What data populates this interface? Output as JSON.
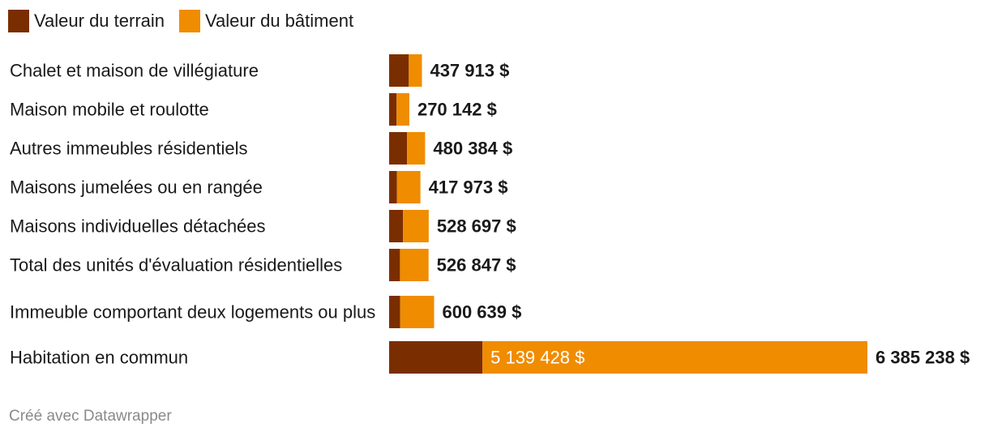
{
  "legend": {
    "items": [
      {
        "label": "Valeur du terrain",
        "color": "#7a2e00"
      },
      {
        "label": "Valeur du bâtiment",
        "color": "#f08c00"
      }
    ]
  },
  "footer": {
    "credit": "Créé avec Datawrapper"
  },
  "colors": {
    "land": "#7a2e00",
    "building": "#f08c00",
    "text": "#1a1a1a",
    "inside_label": "#ffffff"
  },
  "chart_data": {
    "type": "bar",
    "orientation": "horizontal",
    "stacked": true,
    "unit": "$",
    "categories": [
      "Chalet et maison de villégiature",
      "Maison mobile et roulotte",
      "Autres immeubles résidentiels",
      "Maisons jumelées ou en rangée",
      "Maisons individuelles détachées",
      "Total des unités d'évaluation résidentielles",
      "Immeuble comportant deux logements ou plus",
      "Habitation en commun"
    ],
    "series": [
      {
        "name": "Valeur du terrain",
        "values": [
          263000,
          100000,
          240000,
          105000,
          185000,
          145000,
          148000,
          1245810
        ]
      },
      {
        "name": "Valeur du bâtiment",
        "values": [
          174913,
          170142,
          240384,
          312973,
          343697,
          381847,
          452639,
          5139428
        ]
      }
    ],
    "totals": [
      437913,
      270142,
      480384,
      417973,
      528697,
      526847,
      600639,
      6385238
    ],
    "total_labels": [
      "437 913 $",
      "270 142 $",
      "480 384 $",
      "417 973 $",
      "528 697 $",
      "526 847 $",
      "600 639 $",
      "6 385 238 $"
    ],
    "inside_labels": [
      "",
      "",
      "",
      "",
      "",
      "",
      "",
      "5 139 428 $"
    ],
    "xlim": [
      0,
      6385238
    ]
  }
}
